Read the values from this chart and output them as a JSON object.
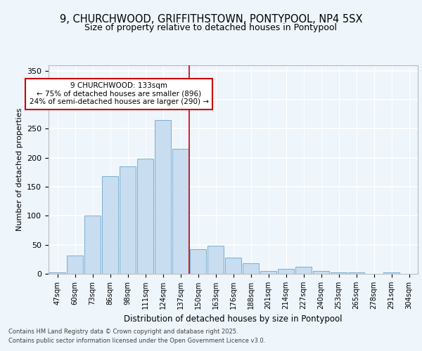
{
  "title_line1": "9, CHURCHWOOD, GRIFFITHSTOWN, PONTYPOOL, NP4 5SX",
  "title_line2": "Size of property relative to detached houses in Pontypool",
  "xlabel": "Distribution of detached houses by size in Pontypool",
  "ylabel": "Number of detached properties",
  "footnote_line1": "Contains HM Land Registry data © Crown copyright and database right 2025.",
  "footnote_line2": "Contains public sector information licensed under the Open Government Licence v3.0.",
  "annotation_line1": "9 CHURCHWOOD: 133sqm",
  "annotation_line2": "← 75% of detached houses are smaller (896)",
  "annotation_line3": "24% of semi-detached houses are larger (290) →",
  "bar_color": "#c8ddf0",
  "bar_edge_color": "#7aaed0",
  "vline_color": "#cc0000",
  "annotation_box_edge": "#cc0000",
  "annotation_box_face": "#ffffff",
  "categories": [
    "47sqm",
    "60sqm",
    "73sqm",
    "86sqm",
    "98sqm",
    "111sqm",
    "124sqm",
    "137sqm",
    "150sqm",
    "163sqm",
    "176sqm",
    "188sqm",
    "201sqm",
    "214sqm",
    "227sqm",
    "240sqm",
    "253sqm",
    "265sqm",
    "278sqm",
    "291sqm",
    "304sqm"
  ],
  "values": [
    3,
    32,
    100,
    168,
    185,
    198,
    265,
    215,
    42,
    48,
    28,
    18,
    5,
    8,
    12,
    5,
    3,
    2,
    0,
    3,
    0
  ],
  "vline_x_idx": 7,
  "ylim": [
    0,
    360
  ],
  "yticks": [
    0,
    50,
    100,
    150,
    200,
    250,
    300,
    350
  ],
  "background_color": "#eef5fb"
}
